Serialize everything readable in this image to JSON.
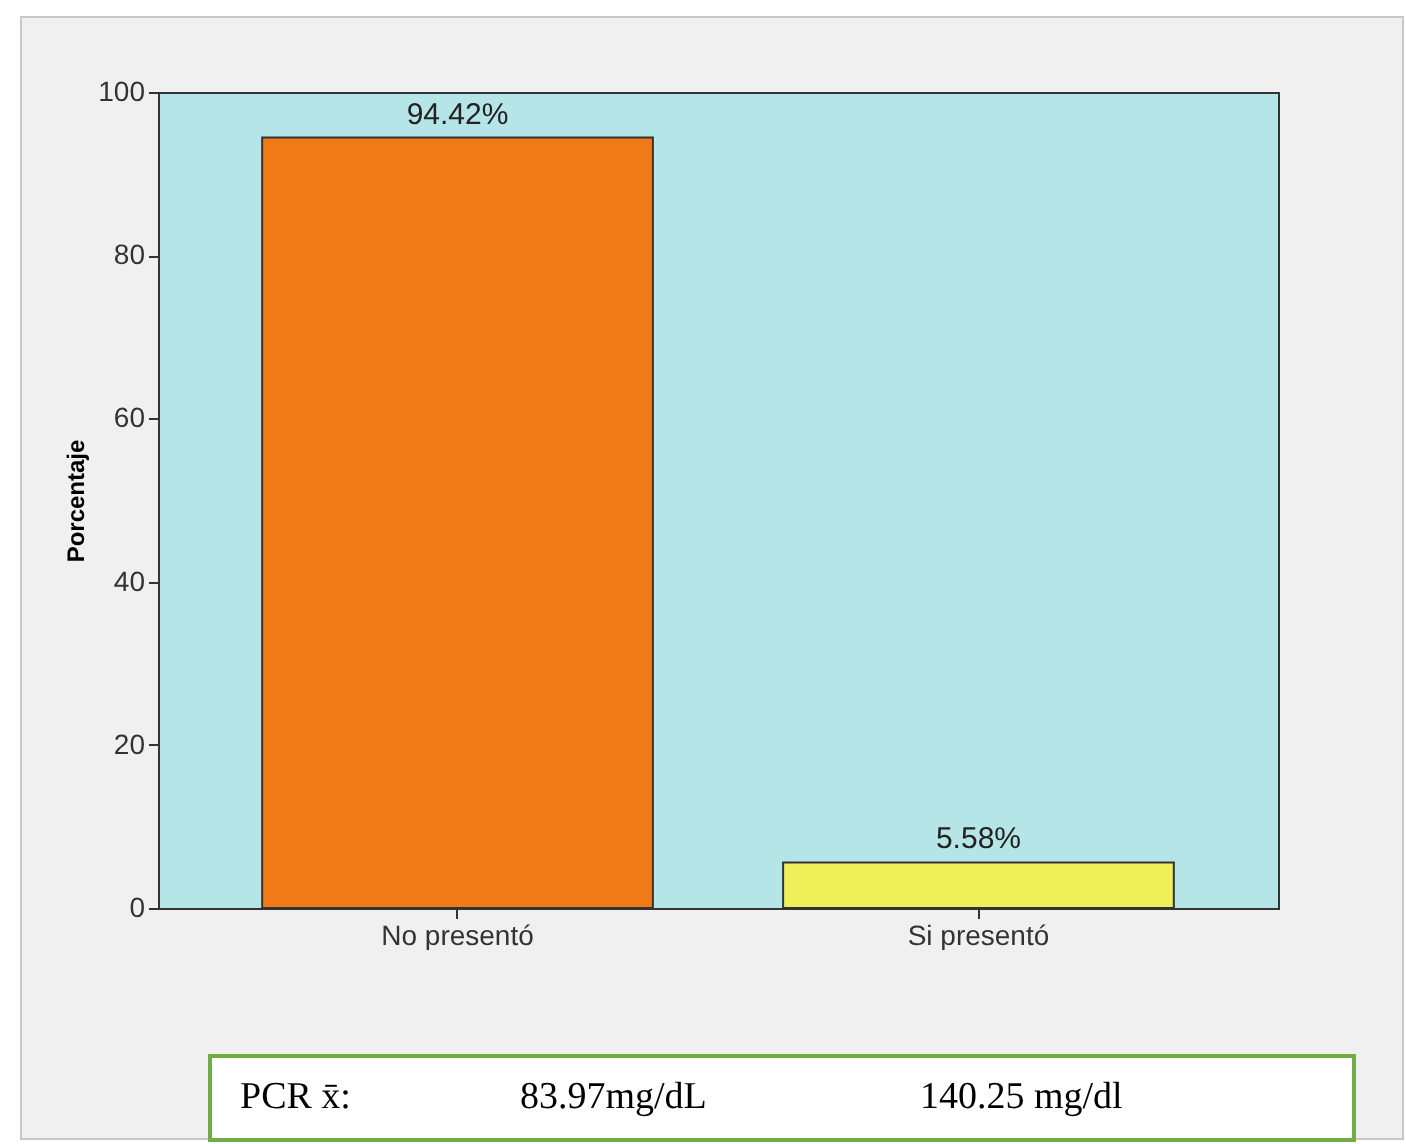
{
  "chart_data": {
    "type": "bar",
    "ylabel": "Porcentaje",
    "categories": [
      "No presentó",
      "Si presentó"
    ],
    "values": [
      94.42,
      5.58
    ],
    "value_labels": [
      "94.42%",
      "5.58%"
    ],
    "colors": [
      "#f07a18",
      "#eef05a"
    ],
    "ylim": [
      0,
      100
    ],
    "yticks": [
      0,
      20,
      40,
      60,
      80,
      100
    ],
    "grid": false,
    "legend": false,
    "annotations": [
      "PCR x̄:",
      "83.97mg/dL",
      "140.25 mg/dl"
    ]
  }
}
